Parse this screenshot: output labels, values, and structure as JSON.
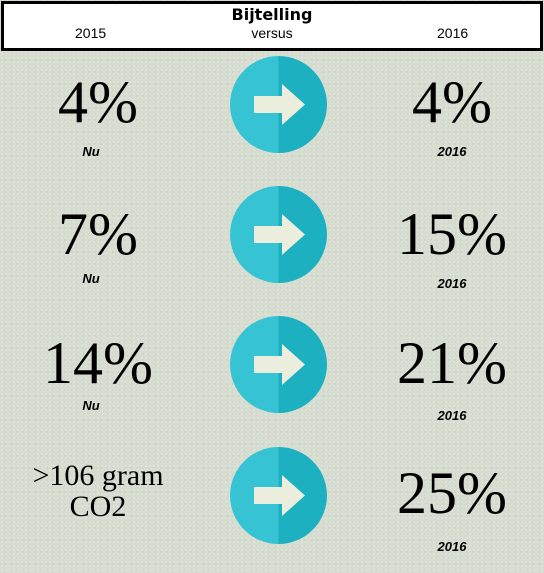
{
  "header": {
    "title": "Bijtelling",
    "left_label": "2015",
    "middle_label": "versus",
    "right_label": "2016"
  },
  "rows": [
    {
      "left_value": "4%",
      "left_caption": "Nu",
      "right_value": "4%",
      "right_caption": "2016",
      "icon": "arrow-right-icon"
    },
    {
      "left_value": "7%",
      "left_caption": "Nu",
      "right_value": "15%",
      "right_caption": "2016",
      "icon": "arrow-right-icon"
    },
    {
      "left_value": "14%",
      "left_caption": "Nu",
      "right_value": "21%",
      "right_caption": "2016",
      "icon": "arrow-right-icon"
    },
    {
      "left_value_line1": ">106 gram",
      "left_value_line2": "CO2",
      "right_value": "25%",
      "right_caption": "2016",
      "icon": "arrow-right-icon"
    }
  ],
  "colors": {
    "background": "#d6ddd0",
    "circle_light": "#36c3d4",
    "circle_dark": "#1cb0c0",
    "arrow": "#eceedd",
    "header_border": "#000000"
  }
}
